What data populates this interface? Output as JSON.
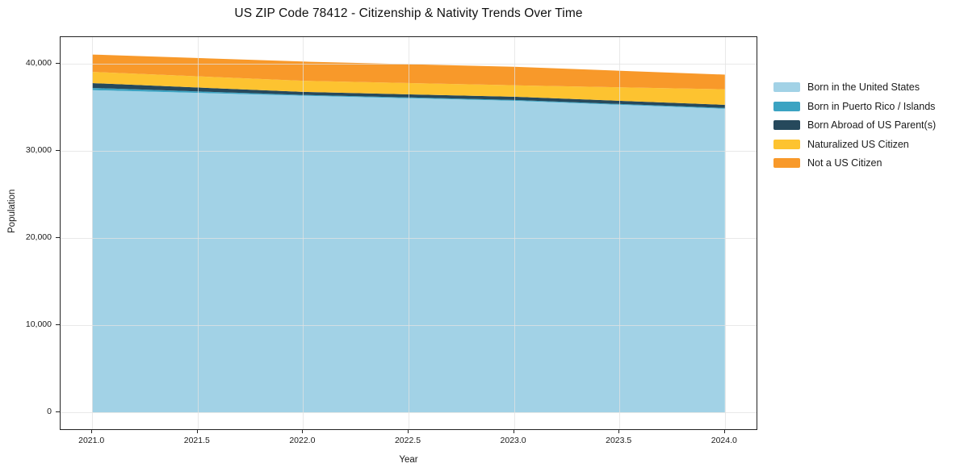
{
  "title": "US ZIP Code 78412 - Citizenship & Nativity Trends Over Time",
  "chart_data": {
    "type": "area",
    "stacked": true,
    "title": "US ZIP Code 78412 - Citizenship & Nativity Trends Over Time",
    "xlabel": "Year",
    "ylabel": "Population",
    "x": [
      2021,
      2022,
      2023,
      2024
    ],
    "series": [
      {
        "name": "Born in the United States",
        "color": "#a2d2e6",
        "values": [
          36930,
          36290,
          35710,
          34790
        ]
      },
      {
        "name": "Born in Puerto Rico / Islands",
        "color": "#3ba3c2",
        "values": [
          250,
          90,
          90,
          90
        ]
      },
      {
        "name": "Born Abroad of US Parent(s)",
        "color": "#26495c",
        "values": [
          550,
          340,
          370,
          365
        ]
      },
      {
        "name": "Naturalized US Citizen",
        "color": "#fdc330",
        "values": [
          1290,
          1280,
          1310,
          1775
        ]
      },
      {
        "name": "Not a US Citizen",
        "color": "#f8992a",
        "values": [
          1980,
          2200,
          2120,
          1680
        ]
      }
    ],
    "totals": [
      41000,
      40200,
      39600,
      38700
    ],
    "xlim": [
      2020.85,
      2024.15
    ],
    "ylim": [
      -1930,
      43000
    ],
    "x_ticks": {
      "values": [
        2021.0,
        2021.5,
        2022.0,
        2022.5,
        2023.0,
        2023.5,
        2024.0
      ],
      "labels": [
        "2021.0",
        "2021.5",
        "2022.0",
        "2022.5",
        "2023.0",
        "2023.5",
        "2024.0"
      ]
    },
    "y_ticks": {
      "values": [
        0,
        10000,
        20000,
        30000,
        40000
      ],
      "labels": [
        "0",
        "10,000",
        "20,000",
        "30,000",
        "40,000"
      ]
    },
    "grid": true,
    "legend_position": "right-outside"
  }
}
